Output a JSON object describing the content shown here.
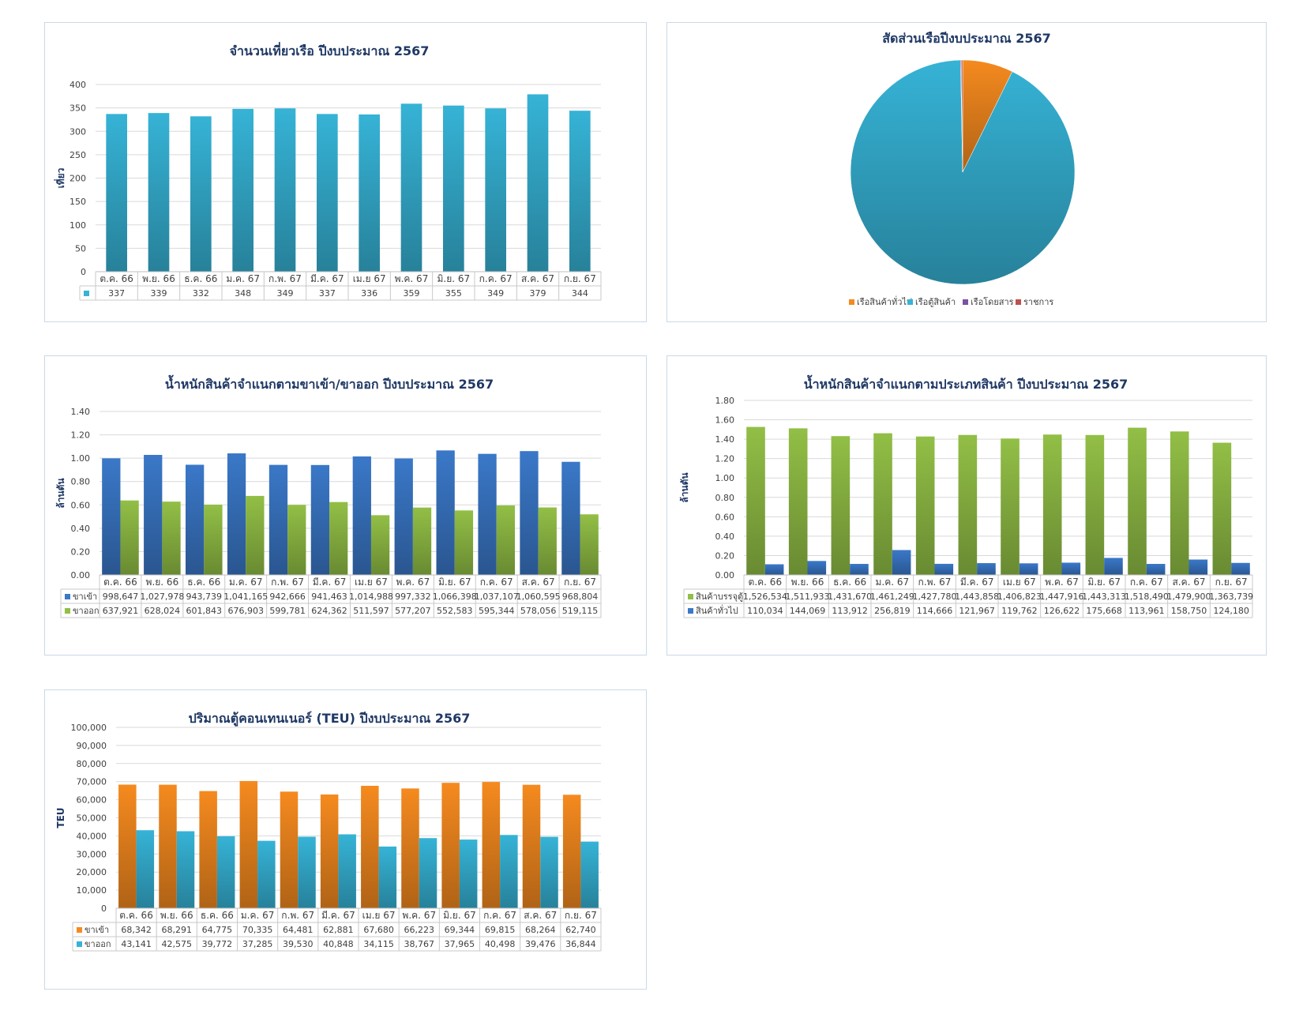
{
  "months": [
    "ต.ค. 66",
    "พ.ย. 66",
    "ธ.ค. 66",
    "ม.ค. 67",
    "ก.พ. 67",
    "มี.ค. 67",
    "เม.ย 67",
    "พ.ค. 67",
    "มิ.ย. 67",
    "ก.ค. 67",
    "ส.ค. 67",
    "ก.ย. 67"
  ],
  "chart_data": [
    {
      "id": "trips",
      "type": "bar",
      "title": "จำนวนเที่ยวเรือ ปีงบประมาณ 2567",
      "ylabel": "เที่ยว",
      "ylim": [
        0,
        400
      ],
      "yticks": [
        "0",
        "50",
        "100",
        "150",
        "200",
        "250",
        "300",
        "350",
        "400"
      ],
      "categories": [
        "ต.ค. 66",
        "พ.ย. 66",
        "ธ.ค. 66",
        "ม.ค. 67",
        "ก.พ. 67",
        "มี.ค. 67",
        "เม.ย 67",
        "พ.ค. 67",
        "มิ.ย. 67",
        "ก.ค. 67",
        "ส.ค. 67",
        "ก.ย. 67"
      ],
      "series": [
        {
          "name": "",
          "color": "#36b3d6",
          "values": [
            337,
            339,
            332,
            348,
            349,
            337,
            336,
            359,
            355,
            349,
            379,
            344
          ],
          "labels": [
            "337",
            "339",
            "332",
            "348",
            "349",
            "337",
            "336",
            "359",
            "355",
            "349",
            "379",
            "344"
          ]
        }
      ]
    },
    {
      "id": "share",
      "type": "pie",
      "title": "สัดส่วนเรือปีงบประมาณ 2567",
      "slices": [
        {
          "name": "เรือสินค้าทั่วไป",
          "color": "#f58a1f",
          "value": 7.3
        },
        {
          "name": "เรือตู้สินค้า",
          "color": "#36b3d6",
          "value": 92.4
        },
        {
          "name": "เรือโดยสาร",
          "color": "#7a52a6",
          "value": 0.1
        },
        {
          "name": "ราชการ",
          "color": "#c0504d",
          "value": 0.2
        }
      ]
    },
    {
      "id": "direction",
      "type": "bar",
      "title": "น้ำหนักสินค้าจำแนกตามขาเข้า/ขาออก ปีงบประมาณ 2567",
      "ylabel": "ล้านตัน",
      "ylim": [
        0,
        1.4
      ],
      "yticks": [
        "0.00",
        "0.20",
        "0.40",
        "0.60",
        "0.80",
        "1.00",
        "1.20",
        "1.40"
      ],
      "categories": [
        "ต.ค. 66",
        "พ.ย. 66",
        "ธ.ค. 66",
        "ม.ค. 67",
        "ก.พ. 67",
        "มี.ค. 67",
        "เม.ย 67",
        "พ.ค. 67",
        "มิ.ย. 67",
        "ก.ค. 67",
        "ส.ค. 67",
        "ก.ย. 67"
      ],
      "series": [
        {
          "name": "ขาเข้า",
          "color": "#3a78c8",
          "values": [
            0.998647,
            1.027978,
            0.943739,
            1.041165,
            0.942666,
            0.941463,
            1.014988,
            0.997332,
            1.066398,
            1.037107,
            1.060595,
            0.968804
          ],
          "labels": [
            "998,647",
            "1,027,978",
            "943,739",
            "1,041,165",
            "942,666",
            "941,463",
            "1,014,988",
            "997,332",
            "1,066,398",
            "1,037,107",
            "1,060,595",
            "968,804"
          ]
        },
        {
          "name": "ขาออก",
          "color": "#92bf46",
          "values": [
            0.637921,
            0.628024,
            0.601843,
            0.676903,
            0.599781,
            0.624362,
            0.511597,
            0.577207,
            0.552583,
            0.595344,
            0.578056,
            0.519115
          ],
          "labels": [
            "637,921",
            "628,024",
            "601,843",
            "676,903",
            "599,781",
            "624,362",
            "511,597",
            "577,207",
            "552,583",
            "595,344",
            "578,056",
            "519,115"
          ]
        }
      ]
    },
    {
      "id": "goods",
      "type": "bar",
      "title": "น้ำหนักสินค้าจำแนกตามประเภทสินค้า ปีงบประมาณ 2567",
      "ylabel": "ล้านตัน",
      "ylim": [
        0,
        1.8
      ],
      "yticks": [
        "0.00",
        "0.20",
        "0.40",
        "0.60",
        "0.80",
        "1.00",
        "1.20",
        "1.40",
        "1.60",
        "1.80"
      ],
      "categories": [
        "ต.ค. 66",
        "พ.ย. 66",
        "ธ.ค. 66",
        "ม.ค. 67",
        "ก.พ. 67",
        "มี.ค. 67",
        "เม.ย 67",
        "พ.ค. 67",
        "มิ.ย. 67",
        "ก.ค. 67",
        "ส.ค. 67",
        "ก.ย. 67"
      ],
      "series": [
        {
          "name": "สินค้าบรรจุตู้",
          "color": "#92bf46",
          "values": [
            1.526534,
            1.511933,
            1.43167,
            1.461249,
            1.42778,
            1.443858,
            1.406823,
            1.447916,
            1.443313,
            1.51849,
            1.4799,
            1.363739
          ],
          "labels": [
            "1,526,534",
            "1,511,933",
            "1,431,670",
            "1,461,249",
            "1,427,780",
            "1,443,858",
            "1,406,823",
            "1,447,916",
            "1,443,313",
            "1,518,490",
            "1,479,900",
            "1,363,739"
          ]
        },
        {
          "name": "สินค้าทั่วไป",
          "color": "#3a78c8",
          "values": [
            0.110034,
            0.144069,
            0.113912,
            0.256819,
            0.114666,
            0.121967,
            0.119762,
            0.126622,
            0.175668,
            0.113961,
            0.15875,
            0.12418
          ],
          "labels": [
            "110,034",
            "144,069",
            "113,912",
            "256,819",
            "114,666",
            "121,967",
            "119,762",
            "126,622",
            "175,668",
            "113,961",
            "158,750",
            "124,180"
          ]
        }
      ]
    },
    {
      "id": "teu",
      "type": "bar",
      "title": "ปริมาณตู้คอนเทนเนอร์ (TEU) ปีงบประมาณ 2567",
      "ylabel": "TEU",
      "ylim": [
        0,
        100000
      ],
      "yticks": [
        "0",
        "10,000",
        "20,000",
        "30,000",
        "40,000",
        "50,000",
        "60,000",
        "70,000",
        "80,000",
        "90,000",
        "100,000"
      ],
      "categories": [
        "ต.ค. 66",
        "พ.ย. 66",
        "ธ.ค. 66",
        "ม.ค. 67",
        "ก.พ. 67",
        "มี.ค. 67",
        "เม.ย 67",
        "พ.ค. 67",
        "มิ.ย. 67",
        "ก.ค. 67",
        "ส.ค. 67",
        "ก.ย. 67"
      ],
      "series": [
        {
          "name": "ขาเข้า",
          "color": "#f58a1f",
          "values": [
            68342,
            68291,
            64775,
            70335,
            64481,
            62881,
            67680,
            66223,
            69344,
            69815,
            68264,
            62740
          ],
          "labels": [
            "68,342",
            "68,291",
            "64,775",
            "70,335",
            "64,481",
            "62,881",
            "67,680",
            "66,223",
            "69,344",
            "69,815",
            "68,264",
            "62,740"
          ]
        },
        {
          "name": "ขาออก",
          "color": "#36b3d6",
          "values": [
            43141,
            42575,
            39772,
            37285,
            39530,
            40848,
            34115,
            38767,
            37965,
            40498,
            39476,
            36844
          ],
          "labels": [
            "43,141",
            "42,575",
            "39,772",
            "37,285",
            "39,530",
            "40,848",
            "34,115",
            "38,767",
            "37,965",
            "40,498",
            "39,476",
            "36,844"
          ]
        }
      ]
    }
  ]
}
